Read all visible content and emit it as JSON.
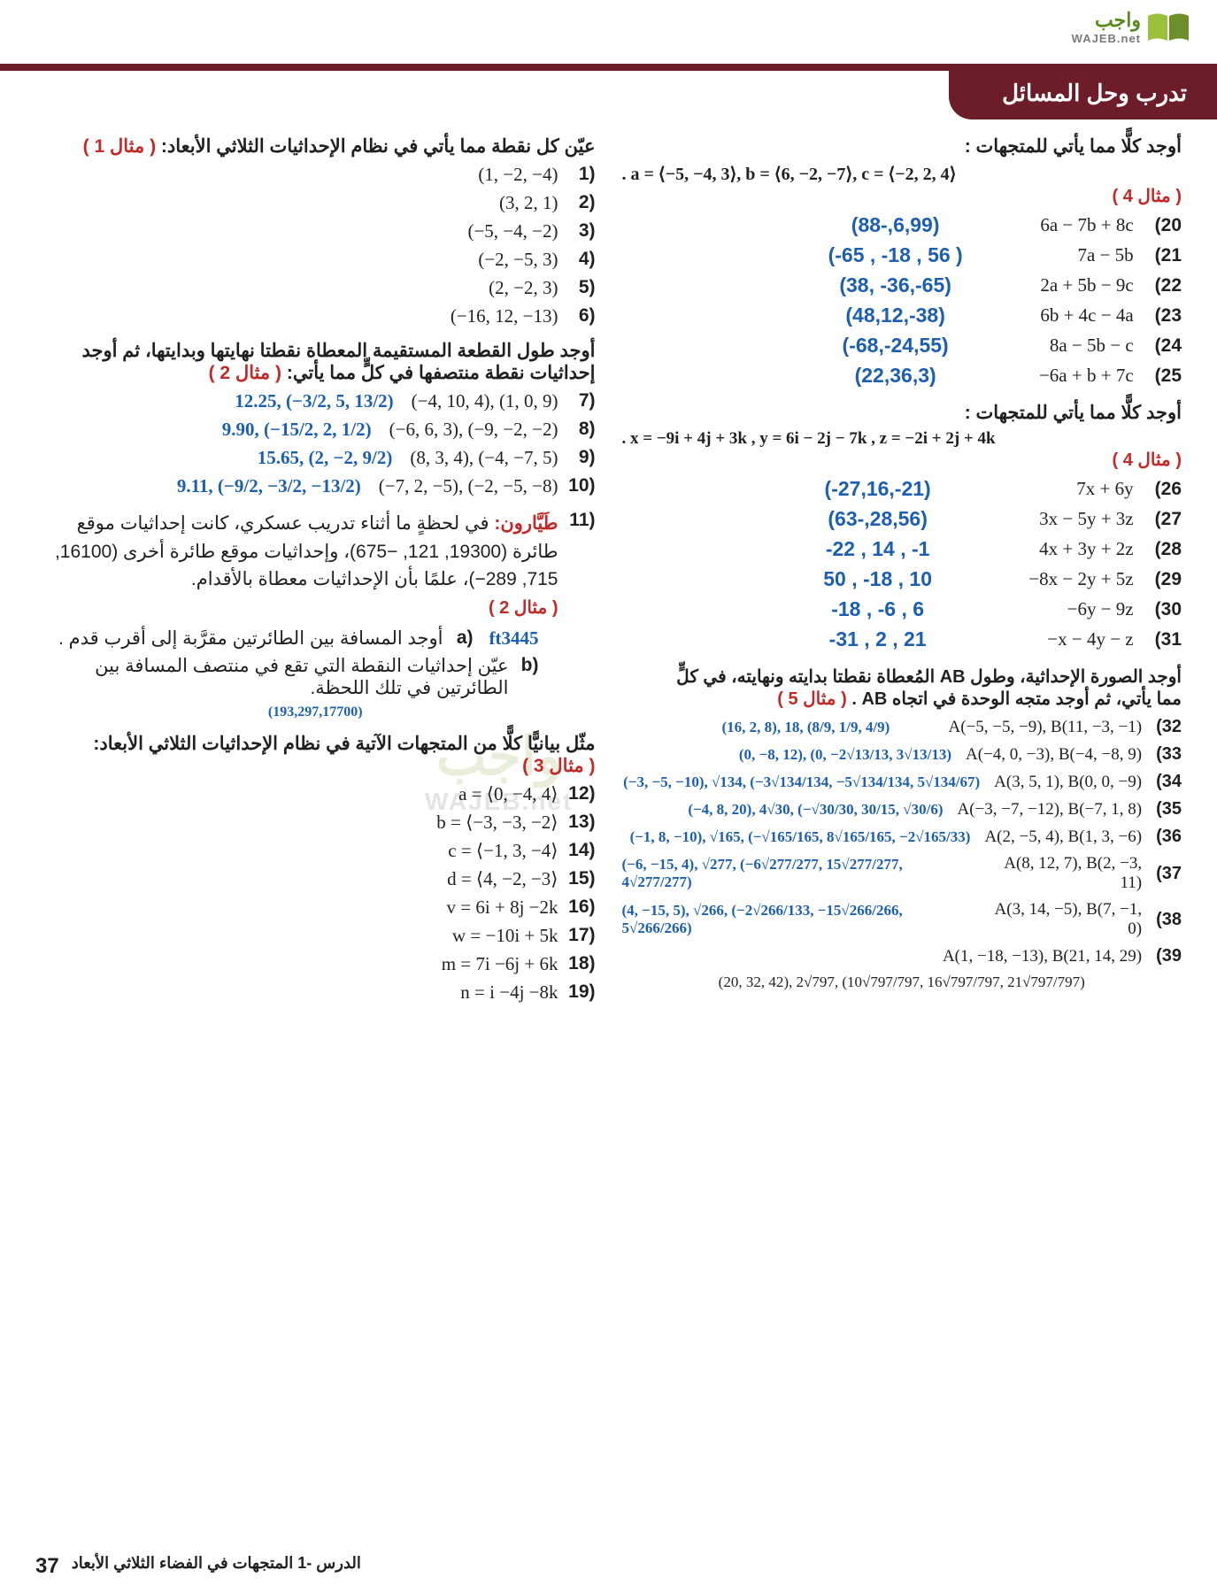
{
  "logo": {
    "ar": "واجب",
    "en": "WAJEB.net"
  },
  "section_title": "تدرب وحل المسائل",
  "watermark": {
    "ar": "واجب",
    "en": "WAJEB.net"
  },
  "footer": {
    "lesson": "الدرس -1   المتجهات في الفضاء الثلاثي الأبعاد",
    "page": "37"
  },
  "colors": {
    "maroon": "#6d1d2a",
    "blue": "#1c5fb0",
    "red": "#c22a2a",
    "text": "#231f20",
    "green": "#5a8a1e"
  },
  "right": {
    "instr1": "عيّن كل نقطة مما يأتي في نظام الإحداثيات الثلاثي الأبعاد:",
    "ex1": "( مثال 1 )",
    "q1_6": [
      {
        "n": "(1",
        "t": "(1, −2, −4)"
      },
      {
        "n": "(2",
        "t": "(3, 2, 1)"
      },
      {
        "n": "(3",
        "t": "(−5, −4, −2)"
      },
      {
        "n": "(4",
        "t": "(−2, −5, 3)"
      },
      {
        "n": "(5",
        "t": "(2, −2, 3)"
      },
      {
        "n": "(6",
        "t": "(−16, 12, −13)"
      }
    ],
    "instr2a": "أوجد طول القطعة المستقيمة المعطاة نقطتا نهايتها وبدايتها، ثم أوجد",
    "instr2b": "إحداثيات نقطة منتصفها في كلٍّ مما يأتي:",
    "ex2": "( مثال 2 )",
    "q7_10": [
      {
        "n": "(7",
        "t": "(−4, 10, 4), (1, 0, 9)",
        "a": "12.25, (−3/2, 5, 13/2)"
      },
      {
        "n": "(8",
        "t": "(−6, 6, 3), (−9, −2, −2)",
        "a": "9.90, (−15/2, 2, 1/2)"
      },
      {
        "n": "(9",
        "t": "(8, 3, 4), (−4, −7, 5)",
        "a": "15.65, (2, −2, 9/2)"
      },
      {
        "n": "(10",
        "t": "(−7, 2, −5), (−2, −5, −8)",
        "a": "9.11, (−9/2, −3/2, −13/2)"
      }
    ],
    "q11_title": "طَيَّارون:",
    "q11_body": "في لحظةٍ ما أثناء تدريب عسكري، كانت إحداثيات موقع طائرة (19300, 121, −675)، وإحداثيات موقع طائرة أخرى (16100, 715, 289−)، علمًا بأن الإحداثيات معطاة بالأقدام.",
    "q11_ex": "( مثال 2 )",
    "q11a_lbl": "(a",
    "q11a": "أوجد المسافة بين الطائرتين مقرَّبة إلى أقرب قدم .",
    "q11a_ans": "ft3445",
    "q11b_lbl": "(b",
    "q11b": "عيّن إحداثيات النقطة التي تقع في منتصف المسافة بين الطائرتين في تلك اللحظة.",
    "q11b_ans": "(193,297,17700)",
    "instr3": "مثّل بيانيًّا كلًّا من المتجهات الآتية في نظام الإحداثيات الثلاثي الأبعاد:",
    "ex3": "( مثال 3 )",
    "q12_19": [
      {
        "n": "(12",
        "t": "a = ⟨0, −4, 4⟩"
      },
      {
        "n": "(13",
        "t": "b = ⟨−3, −3, −2⟩"
      },
      {
        "n": "(14",
        "t": "c = ⟨−1, 3, −4⟩"
      },
      {
        "n": "(15",
        "t": "d = ⟨4, −2, −3⟩"
      },
      {
        "n": "(16",
        "t": "v = 6i + 8j −2k"
      },
      {
        "n": "(17",
        "t": "w = −10i + 5k"
      },
      {
        "n": "(18",
        "t": "m = 7i −6j + 6k"
      },
      {
        "n": "(19",
        "t": "n = i −4j −8k"
      }
    ]
  },
  "left": {
    "instr4": "أوجد كلًّا مما يأتي للمتجهات :",
    "vec_def1": ". a = ⟨−5, −4, 3⟩, b = ⟨6, −2, −7⟩, c = ⟨−2, 2, 4⟩",
    "ex4": "( مثال 4 )",
    "q20_25": [
      {
        "n": "(20",
        "t": "6a − 7b + 8c",
        "a": "(88-,6,99)"
      },
      {
        "n": "(21",
        "t": "7a − 5b",
        "a": "(-65 , -18 , 56 )"
      },
      {
        "n": "(22",
        "t": "2a + 5b − 9c",
        "a": "(38, -36,-65)"
      },
      {
        "n": "(23",
        "t": "6b + 4c − 4a",
        "a": "(48,12,-38)"
      },
      {
        "n": "(24",
        "t": "8a − 5b − c",
        "a": "(-68,-24,55)"
      },
      {
        "n": "(25",
        "t": "−6a + b + 7c",
        "a": "(22,36,3)"
      }
    ],
    "instr5": "أوجد كلًّا مما يأتي للمتجهات :",
    "vec_def2": ". x = −9i + 4j + 3k , y = 6i − 2j − 7k , z = −2i + 2j + 4k",
    "ex4b": "( مثال 4 )",
    "q26_31": [
      {
        "n": "(26",
        "t": "7x + 6y",
        "a": "(-27,16,-21)"
      },
      {
        "n": "(27",
        "t": "3x − 5y + 3z",
        "a": "(63-,28,56)"
      },
      {
        "n": "(28",
        "t": "4x + 3y + 2z",
        "a": "-22 ,  14  , -1"
      },
      {
        "n": "(29",
        "t": "−8x − 2y + 5z",
        "a": "50 ,  -18 ,  10"
      },
      {
        "n": "(30",
        "t": "−6y − 9z",
        "a": "-18 ,  -6 ,  6"
      },
      {
        "n": "(31",
        "t": "−x − 4y − z",
        "a": "-31 , 2 ,  21"
      }
    ],
    "instr6a": "أوجد الصورة الإحداثية، وطول AB المُعطاة نقطتا بدايته ونهايته، في كلٍّ",
    "instr6b": "مما يأتي، ثم أوجد متجه الوحدة في اتجاه AB .",
    "ex5": "( مثال 5 )",
    "q32_39": [
      {
        "n": "(32",
        "t": "A(−5, −5, −9), B(11, −3, −1)",
        "a": "(16, 2, 8), 18, (8/9, 1/9, 4/9)"
      },
      {
        "n": "(33",
        "t": "A(−4, 0, −3), B(−4, −8, 9)",
        "a": "(0, −8, 12), (0, −2√13/13, 3√13/13)"
      },
      {
        "n": "(34",
        "t": "A(3, 5, 1), B(0, 0, −9)",
        "a": "(−3, −5, −10), √134, (−3√134/134, −5√134/134, 5√134/67)"
      },
      {
        "n": "(35",
        "t": "A(−3, −7, −12), B(−7, 1, 8)",
        "a": "(−4, 8, 20), 4√30, (−√30/30, 30/15, √30/6)"
      },
      {
        "n": "(36",
        "t": "A(2, −5, 4), B(1, 3, −6)",
        "a": "(−1, 8, −10), √165, (−√165/165, 8√165/165, −2√165/33)"
      },
      {
        "n": "(37",
        "t": "A(8, 12, 7), B(2, −3, 11)",
        "a": "(−6, −15, 4), √277, (−6√277/277, 15√277/277, 4√277/277)"
      },
      {
        "n": "(38",
        "t": "A(3, 14, −5), B(7, −1, 0)",
        "a": "(4, −15, 5), √266, (−2√266/133, −15√266/266, 5√266/266)"
      },
      {
        "n": "(39",
        "t": "A(1, −18, −13), B(21, 14, 29)",
        "a": ""
      }
    ],
    "q39_ans": "(20, 32, 42), 2√797, (10√797/797, 16√797/797, 21√797/797)"
  }
}
